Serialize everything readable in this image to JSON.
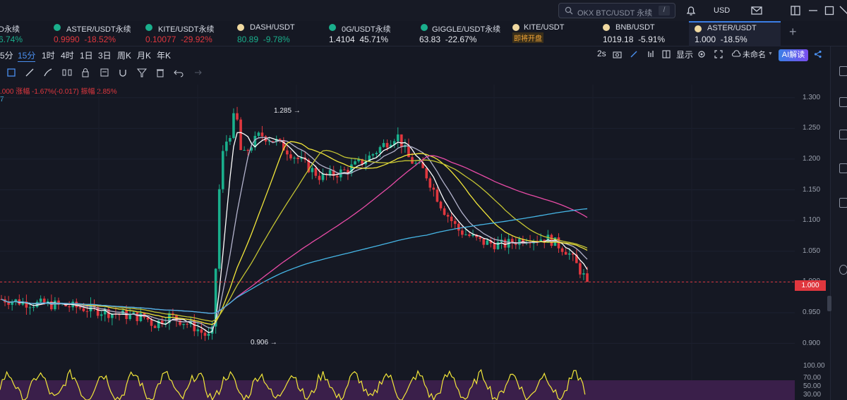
{
  "search": {
    "placeholder": "OKX BTC/USDT 永续",
    "edit_glyph": "/"
  },
  "currency": "USD",
  "topbar_icons": [
    "bell-icon",
    "mail-icon",
    "window-icon",
    "maximize-icon",
    "close-icon"
  ],
  "tickers": [
    {
      "name": "",
      "value": "6.74%",
      "price": "",
      "change": "",
      "partial": true
    },
    {
      "name": "ASTER/USDT永续",
      "price": "0.9990",
      "change": "-18.52%",
      "dot": "#1aaf8c"
    },
    {
      "name": "KITE/USDT永续",
      "price": "0.10077",
      "change": "-29.92%",
      "dot": "#1aaf8c"
    },
    {
      "name": "DASH/USDT",
      "price": "80.89",
      "change": "-9.78%",
      "dot": "#f0d9a0"
    },
    {
      "name": "0G/USDT永续",
      "price": "1.4104",
      "change": "45.71%",
      "dot": "#1aaf8c"
    },
    {
      "name": "GIGGLE/USDT永续",
      "price": "63.83",
      "change": "-22.67%",
      "dot": "#1aaf8c"
    },
    {
      "name": "KITE/USDT",
      "price": "",
      "change": "",
      "badge": "即将开盘",
      "dot": "#f0d9a0"
    },
    {
      "name": "BNB/USDT",
      "price": "1019.18",
      "change": "-5.91%",
      "dot": "#f0d9a0"
    },
    {
      "name": "ASTER/USDT",
      "price": "1.000",
      "change": "-18.5%",
      "dot": "#f0d9a0",
      "active": true
    }
  ],
  "ticker_first": {
    "name": "D永续",
    "change": "6.74%"
  },
  "periods": [
    "5分",
    "15分",
    "1时",
    "4时",
    "1日",
    "3日",
    "周K",
    "月K",
    "年K"
  ],
  "selected_period": "15分",
  "right_controls": {
    "refresh": "2s",
    "display": "显示",
    "unnamed": "未命名",
    "ai": "AI解读"
  },
  "indicator_info": {
    "line1": ".000  涨幅 -1.67%(-0.017)  振幅 2.85%",
    "line2": "7"
  },
  "colors": {
    "up": "#1aaf8c",
    "down": "#e0373e",
    "bg": "#151823",
    "grid": "#1f2333",
    "accent": "#3b7fe6"
  },
  "chart_data": {
    "type": "candlestick",
    "symbol": "ASTER/USDT",
    "interval": "15分",
    "y_ticks": [
      "1.300",
      "1.250",
      "1.200",
      "1.150",
      "1.100",
      "1.050",
      "1.000",
      "0.950",
      "0.900"
    ],
    "ylim": [
      0.88,
      1.31
    ],
    "last_price": "1.000",
    "high_label": "1.285",
    "low_label": "0.906",
    "candles_count": 165,
    "ma_lines": [
      {
        "color": "#ffffff"
      },
      {
        "color": "#b3b3cc"
      },
      {
        "color": "#f2e63a"
      },
      {
        "color": "#c4c433"
      },
      {
        "color": "#e84ba6"
      },
      {
        "color": "#46b6e6"
      }
    ],
    "oscillator": {
      "ticks": [
        "100.00",
        "70.00",
        "50.00",
        "30.00"
      ]
    }
  }
}
